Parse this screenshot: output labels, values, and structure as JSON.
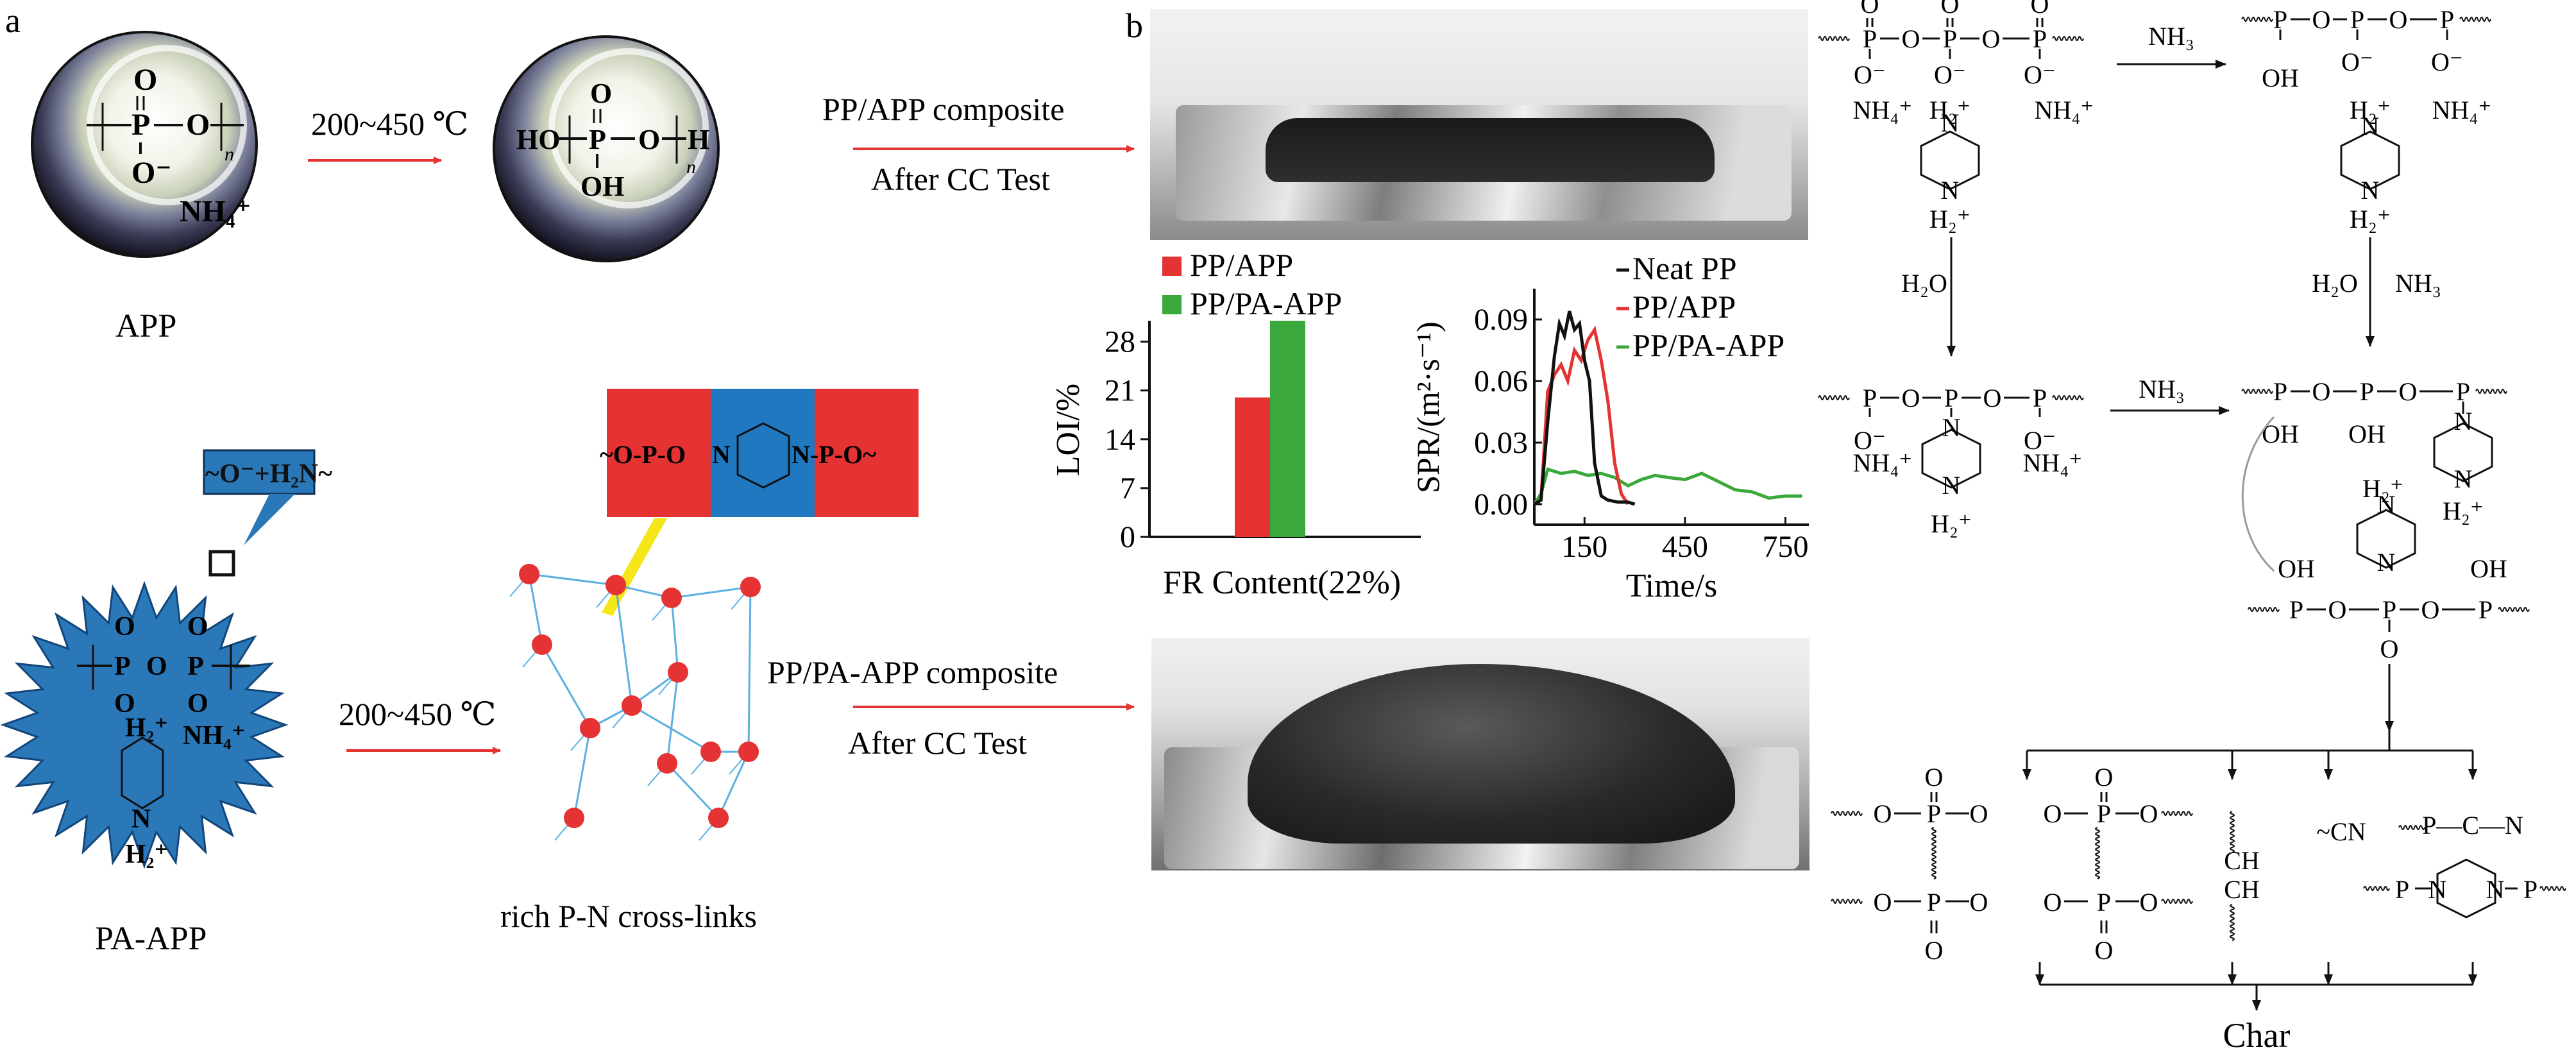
{
  "panel_a": {
    "label": "a",
    "app_label": "APP",
    "pa_app_label": "PA-APP",
    "heat_label_top": "200~450 ℃",
    "heat_label_bottom": "200~450 ℃",
    "crosslink_label": "rich P-N cross-links",
    "callout_text": "~O⁻+H₂N~",
    "app_formula": {
      "p": "P",
      "o": "O",
      "ominus": "O⁻",
      "nh4": "NH₄⁺",
      "n": "n"
    },
    "app_heated_formula": {
      "ho": "HO",
      "p": "P",
      "o": "O",
      "h": "H",
      "oh": "OH",
      "n": "n"
    },
    "pa_formula": {
      "o": "O",
      "p": "P",
      "nh": "H₂⁺",
      "nh4": "NH₄⁺",
      "n": "N",
      "h2": "H₂⁺"
    },
    "crosslink_block": {
      "left": "~O-P-O",
      "mid": "N",
      "right": "N-P-O~"
    }
  },
  "panel_b": {
    "label": "b",
    "top_composite": [
      "PP/APP composite",
      "After CC Test"
    ],
    "bottom_composite": [
      "PP/PA-APP composite",
      "After CC Test"
    ]
  },
  "chart_data": [
    {
      "type": "bar",
      "categories": [
        "FR Content(22%)"
      ],
      "series": [
        {
          "name": "PP/APP",
          "values": [
            20
          ],
          "color": "#e53232"
        },
        {
          "name": "PP/PA-APP",
          "values": [
            31
          ],
          "color": "#3aa83a"
        }
      ],
      "xlabel": "FR Content(22%)",
      "ylabel": "LOI/%",
      "ylim": [
        0,
        31
      ],
      "yticks": [
        "0",
        "7",
        "14",
        "21",
        "28"
      ],
      "legend": "top-left"
    },
    {
      "type": "line",
      "xlabel": "Time/s",
      "ylabel": "SPR/(m²·s⁻¹)",
      "xlim": [
        0,
        820
      ],
      "ylim": [
        -0.01,
        0.105
      ],
      "xticks": [
        "150",
        "450",
        "750"
      ],
      "yticks": [
        "0.00",
        "0.03",
        "0.06",
        "0.09"
      ],
      "legend": "top-right",
      "series": [
        {
          "name": "Neat PP",
          "color": "#111111",
          "x": [
            0,
            20,
            40,
            60,
            75,
            90,
            105,
            120,
            135,
            150,
            165,
            180,
            200,
            220,
            250,
            280,
            300
          ],
          "y": [
            0,
            0.002,
            0.04,
            0.072,
            0.088,
            0.082,
            0.094,
            0.085,
            0.088,
            0.07,
            0.06,
            0.02,
            0.004,
            0.002,
            0.001,
            0.001,
            0
          ]
        },
        {
          "name": "PP/APP",
          "color": "#e53232",
          "x": [
            0,
            20,
            40,
            60,
            80,
            100,
            120,
            140,
            160,
            180,
            200,
            220,
            240,
            260,
            280
          ],
          "y": [
            0,
            0.002,
            0.055,
            0.063,
            0.068,
            0.06,
            0.075,
            0.07,
            0.08,
            0.085,
            0.07,
            0.05,
            0.02,
            0.005,
            0
          ]
        },
        {
          "name": "PP/PA-APP",
          "color": "#3aa83a",
          "x": [
            0,
            20,
            40,
            80,
            120,
            160,
            200,
            240,
            280,
            320,
            360,
            400,
            450,
            500,
            550,
            600,
            650,
            700,
            750,
            800
          ],
          "y": [
            0,
            0.005,
            0.017,
            0.015,
            0.016,
            0.014,
            0.015,
            0.013,
            0.009,
            0.012,
            0.014,
            0.013,
            0.012,
            0.015,
            0.011,
            0.007,
            0.006,
            0.003,
            0.004,
            0.004
          ]
        }
      ]
    }
  ],
  "mechanism": {
    "nh3": "NH₃",
    "h2o": "H₂O",
    "h2o_nh3": [
      "H₂O",
      "NH₃"
    ],
    "char": "Char",
    "cn": "~CN",
    "pcn": "P—C—N",
    "chch": [
      "CH",
      "CH"
    ],
    "labels": {
      "o": "O",
      "p": "P",
      "ominus": "O⁻",
      "oh": "OH",
      "nh4": "NH₄⁺",
      "h2plus": "H₂⁺",
      "n": "N"
    }
  }
}
